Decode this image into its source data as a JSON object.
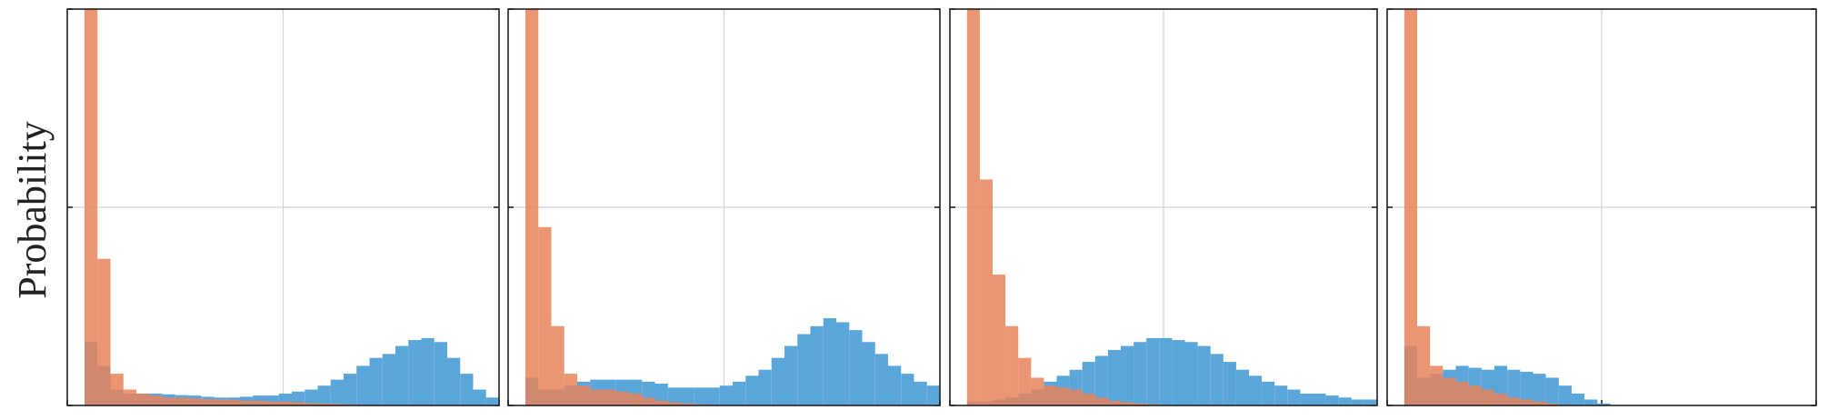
{
  "y_label": "Probability",
  "chart_data": [
    {
      "type": "histogram",
      "xlim": [
        0,
        1
      ],
      "ylim": [
        0,
        1
      ],
      "xticks": [
        0,
        0.5,
        1
      ],
      "yticks": [
        0,
        0.5,
        1
      ],
      "grid": true,
      "bins": [
        0.04,
        0.07,
        0.1,
        0.13,
        0.16,
        0.19,
        0.22,
        0.25,
        0.28,
        0.31,
        0.34,
        0.37,
        0.4,
        0.43,
        0.46,
        0.49,
        0.52,
        0.55,
        0.58,
        0.61,
        0.64,
        0.67,
        0.7,
        0.73,
        0.76,
        0.79,
        0.82,
        0.85,
        0.88,
        0.91,
        0.94,
        0.97,
        1.0
      ],
      "series": [
        {
          "color": "#5aa6da",
          "values": [
            0.16,
            0.1,
            0.04,
            0.03,
            0.03,
            0.03,
            0.028,
            0.026,
            0.025,
            0.022,
            0.02,
            0.02,
            0.022,
            0.025,
            0.025,
            0.03,
            0.035,
            0.04,
            0.05,
            0.065,
            0.08,
            0.1,
            0.12,
            0.13,
            0.15,
            0.165,
            0.17,
            0.16,
            0.12,
            0.08,
            0.04,
            0.02
          ]
        },
        {
          "color": "#e8825a",
          "values": [
            1.0,
            0.37,
            0.08,
            0.04,
            0.03,
            0.025,
            0.02,
            0.02,
            0.018,
            0.016,
            0.015,
            0.014,
            0.012,
            0.012,
            0.01,
            0.01,
            0.008,
            0.006,
            0.005,
            0.004,
            0.003,
            0.002,
            0.002,
            0.001,
            0,
            0,
            0,
            0,
            0,
            0,
            0,
            0
          ]
        }
      ]
    },
    {
      "type": "histogram",
      "xlim": [
        0,
        1
      ],
      "ylim": [
        0,
        1
      ],
      "xticks": [
        0,
        0.5,
        1
      ],
      "yticks": [
        0,
        0.5,
        1
      ],
      "grid": true,
      "bins": [
        0.04,
        0.07,
        0.1,
        0.13,
        0.16,
        0.19,
        0.22,
        0.25,
        0.28,
        0.31,
        0.34,
        0.37,
        0.4,
        0.43,
        0.46,
        0.49,
        0.52,
        0.55,
        0.58,
        0.61,
        0.64,
        0.67,
        0.7,
        0.73,
        0.76,
        0.79,
        0.82,
        0.85,
        0.88,
        0.91,
        0.94,
        0.97,
        1.0
      ],
      "series": [
        {
          "color": "#5aa6da",
          "values": [
            0.07,
            0.04,
            0.04,
            0.05,
            0.06,
            0.065,
            0.065,
            0.065,
            0.065,
            0.06,
            0.055,
            0.045,
            0.045,
            0.045,
            0.045,
            0.05,
            0.06,
            0.075,
            0.09,
            0.12,
            0.15,
            0.18,
            0.2,
            0.22,
            0.21,
            0.19,
            0.16,
            0.13,
            0.1,
            0.08,
            0.06,
            0.05
          ]
        },
        {
          "color": "#e8825a",
          "values": [
            1.0,
            0.45,
            0.2,
            0.08,
            0.05,
            0.04,
            0.04,
            0.035,
            0.03,
            0.02,
            0.012,
            0.008,
            0.005,
            0.003,
            0.002,
            0.001,
            0,
            0,
            0,
            0,
            0,
            0,
            0,
            0,
            0,
            0,
            0,
            0,
            0,
            0,
            0,
            0
          ]
        }
      ]
    },
    {
      "type": "histogram",
      "xlim": [
        0,
        1
      ],
      "ylim": [
        0,
        1
      ],
      "xticks": [
        0,
        0.5,
        1
      ],
      "yticks": [
        0,
        0.5,
        1
      ],
      "grid": true,
      "bins": [
        0.04,
        0.07,
        0.1,
        0.13,
        0.16,
        0.19,
        0.22,
        0.25,
        0.28,
        0.31,
        0.34,
        0.37,
        0.4,
        0.43,
        0.46,
        0.49,
        0.52,
        0.55,
        0.58,
        0.61,
        0.64,
        0.67,
        0.7,
        0.73,
        0.76,
        0.79,
        0.82,
        0.85,
        0.88,
        0.91,
        0.94,
        0.97,
        1.0
      ],
      "series": [
        {
          "color": "#5aa6da",
          "values": [
            0.01,
            0.01,
            0.015,
            0.02,
            0.03,
            0.04,
            0.06,
            0.075,
            0.09,
            0.11,
            0.125,
            0.14,
            0.15,
            0.16,
            0.17,
            0.17,
            0.165,
            0.16,
            0.15,
            0.13,
            0.11,
            0.09,
            0.075,
            0.06,
            0.05,
            0.04,
            0.03,
            0.03,
            0.025,
            0.02,
            0.015,
            0.015
          ]
        },
        {
          "color": "#e8825a",
          "values": [
            1.0,
            0.57,
            0.33,
            0.2,
            0.12,
            0.07,
            0.05,
            0.045,
            0.04,
            0.03,
            0.02,
            0.012,
            0.008,
            0.005,
            0.003,
            0.002,
            0.001,
            0,
            0,
            0,
            0,
            0,
            0,
            0,
            0,
            0,
            0,
            0,
            0,
            0,
            0,
            0
          ]
        }
      ]
    },
    {
      "type": "histogram",
      "xlim": [
        0,
        1
      ],
      "ylim": [
        0,
        1
      ],
      "xticks": [
        0,
        0.5,
        1
      ],
      "yticks": [
        0,
        0.5,
        1
      ],
      "grid": true,
      "bins": [
        0.04,
        0.07,
        0.1,
        0.13,
        0.16,
        0.19,
        0.22,
        0.25,
        0.28,
        0.31,
        0.34,
        0.37,
        0.4,
        0.43,
        0.46,
        0.49,
        0.52,
        0.55,
        0.58,
        0.61,
        0.64,
        0.67,
        0.7,
        0.73,
        0.76,
        0.79,
        0.82,
        0.85,
        0.88,
        0.91,
        0.94,
        0.97,
        1.0
      ],
      "series": [
        {
          "color": "#5aa6da",
          "values": [
            0.15,
            0.07,
            0.08,
            0.09,
            0.1,
            0.095,
            0.09,
            0.1,
            0.09,
            0.085,
            0.08,
            0.07,
            0.05,
            0.03,
            0.015,
            0.005,
            0,
            0,
            0,
            0,
            0,
            0,
            0,
            0,
            0,
            0,
            0,
            0,
            0,
            0,
            0,
            0
          ]
        },
        {
          "color": "#e8825a",
          "values": [
            1.0,
            0.2,
            0.1,
            0.07,
            0.06,
            0.05,
            0.04,
            0.03,
            0.02,
            0.015,
            0.01,
            0.005,
            0,
            0,
            0,
            0,
            0,
            0,
            0,
            0,
            0,
            0,
            0,
            0,
            0,
            0,
            0,
            0,
            0,
            0,
            0,
            0
          ]
        }
      ]
    }
  ]
}
